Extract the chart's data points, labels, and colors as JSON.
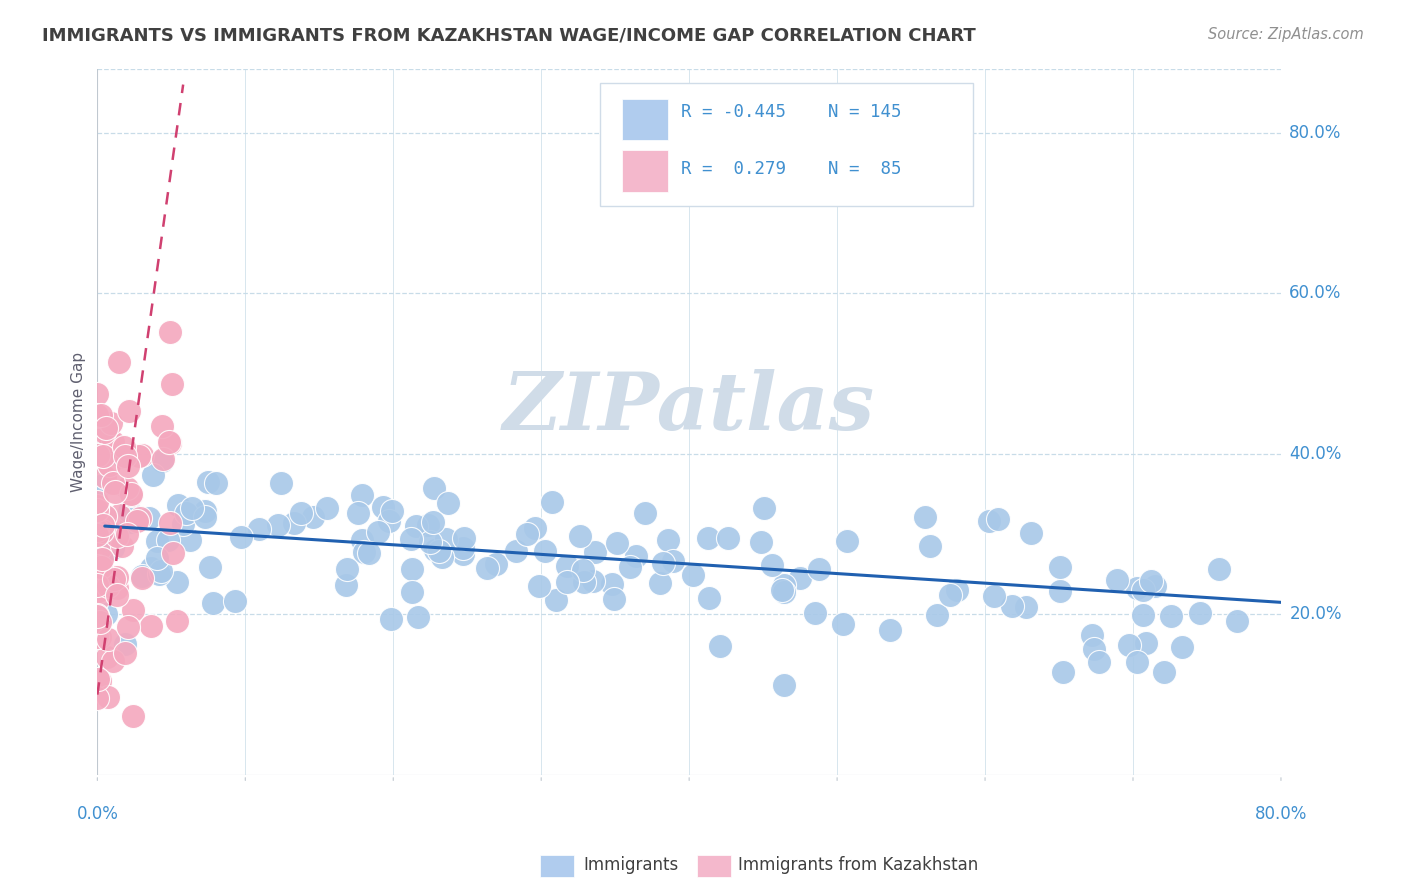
{
  "title": "IMMIGRANTS VS IMMIGRANTS FROM KAZAKHSTAN WAGE/INCOME GAP CORRELATION CHART",
  "source": "Source: ZipAtlas.com",
  "ylabel": "Wage/Income Gap",
  "right_ytick_vals": [
    0.2,
    0.4,
    0.6,
    0.8
  ],
  "right_ytick_labels": [
    "20.0%",
    "40.0%",
    "60.0%",
    "80.0%"
  ],
  "xlim": [
    0.0,
    0.8
  ],
  "ylim": [
    0.0,
    0.88
  ],
  "blue_dot_color": "#a8c8e8",
  "pink_dot_color": "#f4a8be",
  "blue_line_color": "#2060b0",
  "pink_line_color": "#d04070",
  "legend_text_color": "#4090d0",
  "legend_box_blue": "#b0ccee",
  "legend_box_pink": "#f4b8cc",
  "title_color": "#404040",
  "source_color": "#909090",
  "grid_color": "#c8dce8",
  "watermark_color": "#d0dce8",
  "background_color": "#ffffff",
  "blue_R": -0.445,
  "blue_N": 145,
  "pink_R": 0.279,
  "pink_N": 85,
  "blue_line_x0": 0.005,
  "blue_line_x1": 0.8,
  "blue_line_y0": 0.31,
  "blue_line_y1": 0.215,
  "pink_line_x0": 0.0,
  "pink_line_x1": 0.058,
  "pink_line_y0": 0.1,
  "pink_line_y1": 0.86
}
